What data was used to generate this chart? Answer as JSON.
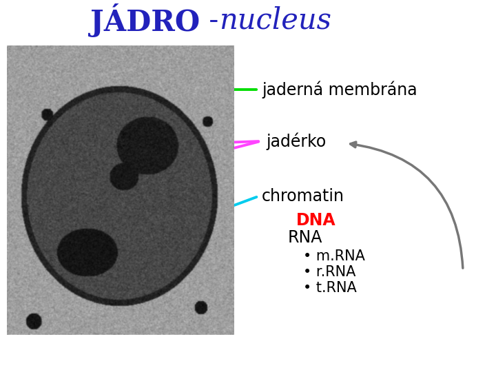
{
  "title_bold": "JÁDRO",
  "title_dash": " - ",
  "title_italic": "nucleus",
  "title_color": "#2222bb",
  "title_fontsize": 30,
  "bg_color": "#ffffff",
  "label1": "jaderná membrána",
  "label2": "jadérko",
  "label3": "chromatin",
  "label4_red": "DNA",
  "label5": "RNA",
  "label6": "• m.RNA",
  "label7": "• r.RNA",
  "label8": "• t.RNA",
  "arrow1_color": "#00dd00",
  "arrow2_color": "#ff44ff",
  "arrow3_color": "#00ccee",
  "curved_arrow_color": "#777777",
  "label_fontsize": 17,
  "sub_fontsize": 15,
  "dna_fontsize": 17
}
